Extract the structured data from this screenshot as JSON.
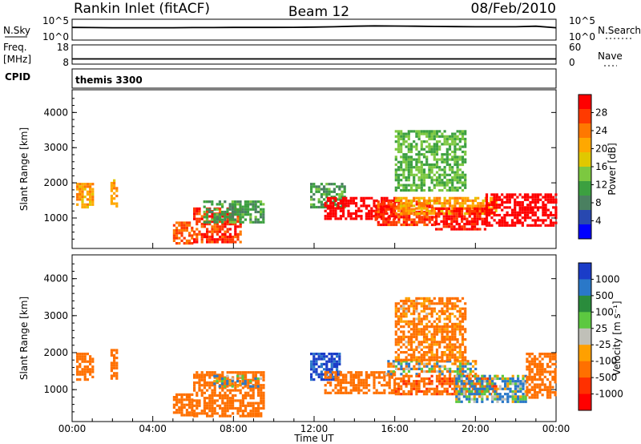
{
  "header": {
    "station": "Rankin Inlet (fitACF)",
    "beam": "Beam 12",
    "date": "08/Feb/2010"
  },
  "nsky_panel": {
    "left_label": "N.Sky",
    "right_label": "N.Search",
    "ticks_left": [
      "10^5",
      "10^0"
    ],
    "ticks_right": [
      "10^5",
      "10^0"
    ]
  },
  "freq_panel": {
    "left_label_1": "Freq.",
    "left_label_2": "[MHz]",
    "right_label": "Nave",
    "ticks_left": [
      "18",
      "8"
    ],
    "ticks_right": [
      "60",
      "0"
    ]
  },
  "cpid_panel": {
    "left_label": "CPID",
    "program": "themis 3300"
  },
  "power_panel": {
    "ylabel": "Slant Range [km]",
    "yticks": [
      "4000",
      "3000",
      "2000",
      "1000"
    ],
    "colorbar_label": "Power [dB]",
    "colorbar_ticks": [
      "28",
      "24",
      "20",
      "16",
      "12",
      "8",
      "4"
    ],
    "colors": [
      "#ff0000",
      "#ff3a00",
      "#ff7800",
      "#ffa800",
      "#e0c800",
      "#7cc840",
      "#3ca040",
      "#4a8060",
      "#2848b0",
      "#0000ff"
    ]
  },
  "velocity_panel": {
    "ylabel": "Slant Range [km]",
    "yticks": [
      "4000",
      "3000",
      "2000",
      "1000"
    ],
    "colorbar_label": "Velocity [m s⁻¹]",
    "colorbar_ticks": [
      "1000",
      "500",
      "100",
      "25",
      "-25",
      "-100",
      "-500",
      "-1000"
    ],
    "colors": [
      "#1a3cc8",
      "#2a78c8",
      "#2a8c3c",
      "#5cc840",
      "#c0c0b8",
      "#ffa000",
      "#ff7000",
      "#ff3000",
      "#ff0000"
    ]
  },
  "x_axis": {
    "label": "Time UT",
    "ticks": [
      "00:00",
      "04:00",
      "08:00",
      "12:00",
      "16:00",
      "20:00",
      "00:00"
    ]
  },
  "chart_data": [
    {
      "type": "line",
      "name": "N.Sky",
      "x": [
        0,
        1,
        2,
        3,
        4,
        5,
        6,
        7,
        8,
        9,
        10,
        11,
        12,
        13,
        14,
        15,
        16,
        17,
        18,
        19,
        20,
        21,
        22,
        23,
        24
      ],
      "values": [
        1200,
        1100,
        1000,
        1000,
        1000,
        1000,
        1100,
        1100,
        1200,
        1200,
        1200,
        1300,
        1500,
        1800,
        2500,
        3000,
        2800,
        2500,
        2200,
        2000,
        1800,
        1800,
        1800,
        2500,
        1000
      ],
      "x_unit": "hours UT",
      "ylim": [
        1,
        100000
      ],
      "yscale": "log"
    },
    {
      "type": "line",
      "name": "Freq.",
      "x": [
        0,
        4,
        8,
        12,
        16,
        20,
        24
      ],
      "values": [
        10.5,
        10.5,
        10.5,
        10.5,
        10.5,
        10.5,
        10.5
      ],
      "ylim": [
        8,
        18
      ]
    },
    {
      "type": "heatmap",
      "name": "Power",
      "xlim": [
        0,
        24
      ],
      "ylim": [
        180,
        4600
      ],
      "clim": [
        0,
        30
      ],
      "regions": [
        {
          "t0": 0.2,
          "t1": 1.0,
          "r0": 1300,
          "r1": 2000,
          "value": 20
        },
        {
          "t0": 1.9,
          "t1": 2.2,
          "r0": 1300,
          "r1": 2100,
          "value": 20
        },
        {
          "t0": 5.0,
          "t1": 5.9,
          "r0": 300,
          "r1": 900,
          "value": 24
        },
        {
          "t0": 6.0,
          "t1": 8.3,
          "r0": 300,
          "r1": 1300,
          "value": 26
        },
        {
          "t0": 6.5,
          "t1": 9.5,
          "r0": 900,
          "r1": 1500,
          "value": 10
        },
        {
          "t0": 11.8,
          "t1": 13.5,
          "r0": 1300,
          "r1": 2000,
          "value": 10
        },
        {
          "t0": 12.5,
          "t1": 16.0,
          "r0": 1000,
          "r1": 1600,
          "value": 30
        },
        {
          "t0": 15.0,
          "t1": 18.0,
          "r0": 800,
          "r1": 1500,
          "value": 26
        },
        {
          "t0": 16.0,
          "t1": 21.0,
          "r0": 1100,
          "r1": 1600,
          "value": 20
        },
        {
          "t0": 18.0,
          "t1": 20.5,
          "r0": 700,
          "r1": 1300,
          "value": 28
        },
        {
          "t0": 20.5,
          "t1": 24.0,
          "r0": 800,
          "r1": 1700,
          "value": 30
        },
        {
          "t0": 16.0,
          "t1": 19.5,
          "r0": 1800,
          "r1": 3500,
          "value": 12
        }
      ]
    },
    {
      "type": "heatmap",
      "name": "Velocity",
      "xlim": [
        0,
        24
      ],
      "ylim": [
        180,
        4600
      ],
      "clim": [
        -1000,
        1000
      ],
      "regions": [
        {
          "t0": 0.2,
          "t1": 1.0,
          "r0": 1300,
          "r1": 2000,
          "value": -300
        },
        {
          "t0": 1.9,
          "t1": 2.2,
          "r0": 1300,
          "r1": 2100,
          "value": -300
        },
        {
          "t0": 5.0,
          "t1": 5.9,
          "r0": 300,
          "r1": 900,
          "value": -300
        },
        {
          "t0": 6.0,
          "t1": 9.5,
          "r0": 300,
          "r1": 1500,
          "value": -300
        },
        {
          "t0": 7.0,
          "t1": 9.3,
          "r0": 1100,
          "r1": 1400,
          "value": 0
        },
        {
          "t0": 11.8,
          "t1": 13.3,
          "r0": 1300,
          "r1": 2000,
          "value": 600
        },
        {
          "t0": 12.5,
          "t1": 16.0,
          "r0": 900,
          "r1": 1500,
          "value": -300
        },
        {
          "t0": 15.5,
          "t1": 20.0,
          "r0": 1400,
          "r1": 1800,
          "value": 0
        },
        {
          "t0": 16.0,
          "t1": 21.0,
          "r0": 900,
          "r1": 1400,
          "value": -400
        },
        {
          "t0": 19.0,
          "t1": 22.5,
          "r0": 700,
          "r1": 1400,
          "value": 100
        },
        {
          "t0": 22.5,
          "t1": 24.0,
          "r0": 800,
          "r1": 2000,
          "value": -300
        },
        {
          "t0": 16.0,
          "t1": 19.5,
          "r0": 1800,
          "r1": 3500,
          "value": -200
        }
      ]
    }
  ]
}
